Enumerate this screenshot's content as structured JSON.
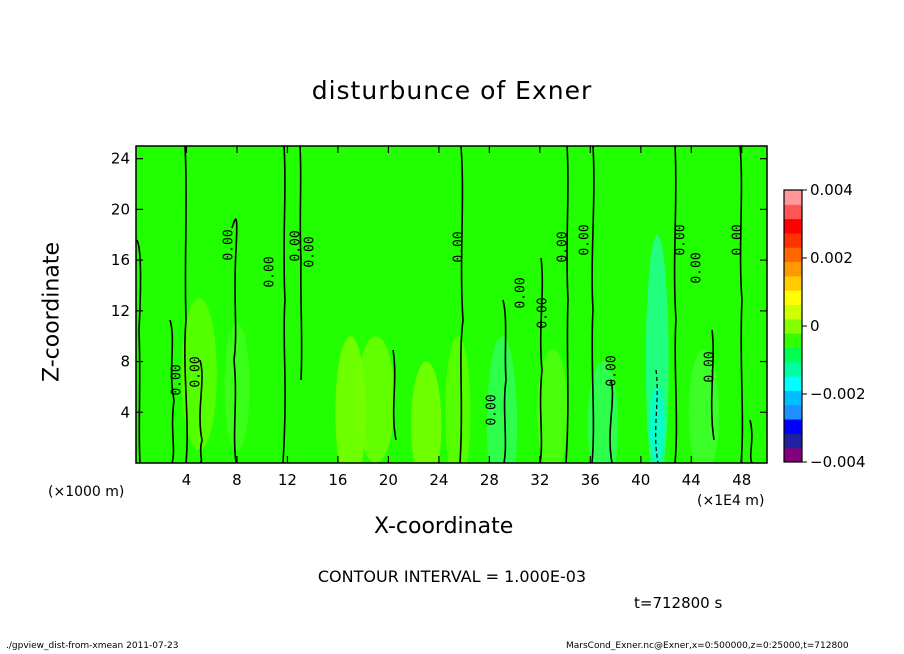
{
  "chart_data": {
    "type": "heatmap",
    "title": "disturbunce of Exner",
    "xlabel": "X-coordinate",
    "ylabel": "Z-coordinate",
    "x_unit_label": "(×1000 m)",
    "x_unit_label_right": "(×1E4 m)",
    "xlim": [
      0,
      50
    ],
    "ylim": [
      0,
      25
    ],
    "x_ticks": [
      4,
      8,
      12,
      16,
      20,
      24,
      28,
      32,
      36,
      40,
      44,
      48
    ],
    "y_ticks": [
      4,
      8,
      12,
      16,
      20,
      24
    ],
    "colorbar": {
      "min": -0.004,
      "max": 0.004,
      "tick_labels": [
        "0.004",
        "0.002",
        "0",
        "−0.002",
        "−0.004"
      ],
      "colors": [
        "#800080",
        "#2020a0",
        "#0000ff",
        "#1e90ff",
        "#00bfff",
        "#00ffff",
        "#00ffa0",
        "#00ff50",
        "#33ff00",
        "#88ff00",
        "#ccff00",
        "#ffff00",
        "#ffcc00",
        "#ff9900",
        "#ff6600",
        "#ff3300",
        "#ff0000",
        "#ff5555",
        "#ff9999"
      ]
    },
    "contour_labels": [
      "0.00"
    ],
    "contour_interval": "CONTOUR INTERVAL = 1.000E-03",
    "time_label": "t=712800 s"
  },
  "footer": {
    "left": "./gpview_dist-from-xmean  2011-07-23",
    "right": "MarsCond_Exner.nc@Exner,x=0:500000,z=0:25000,t=712800"
  }
}
